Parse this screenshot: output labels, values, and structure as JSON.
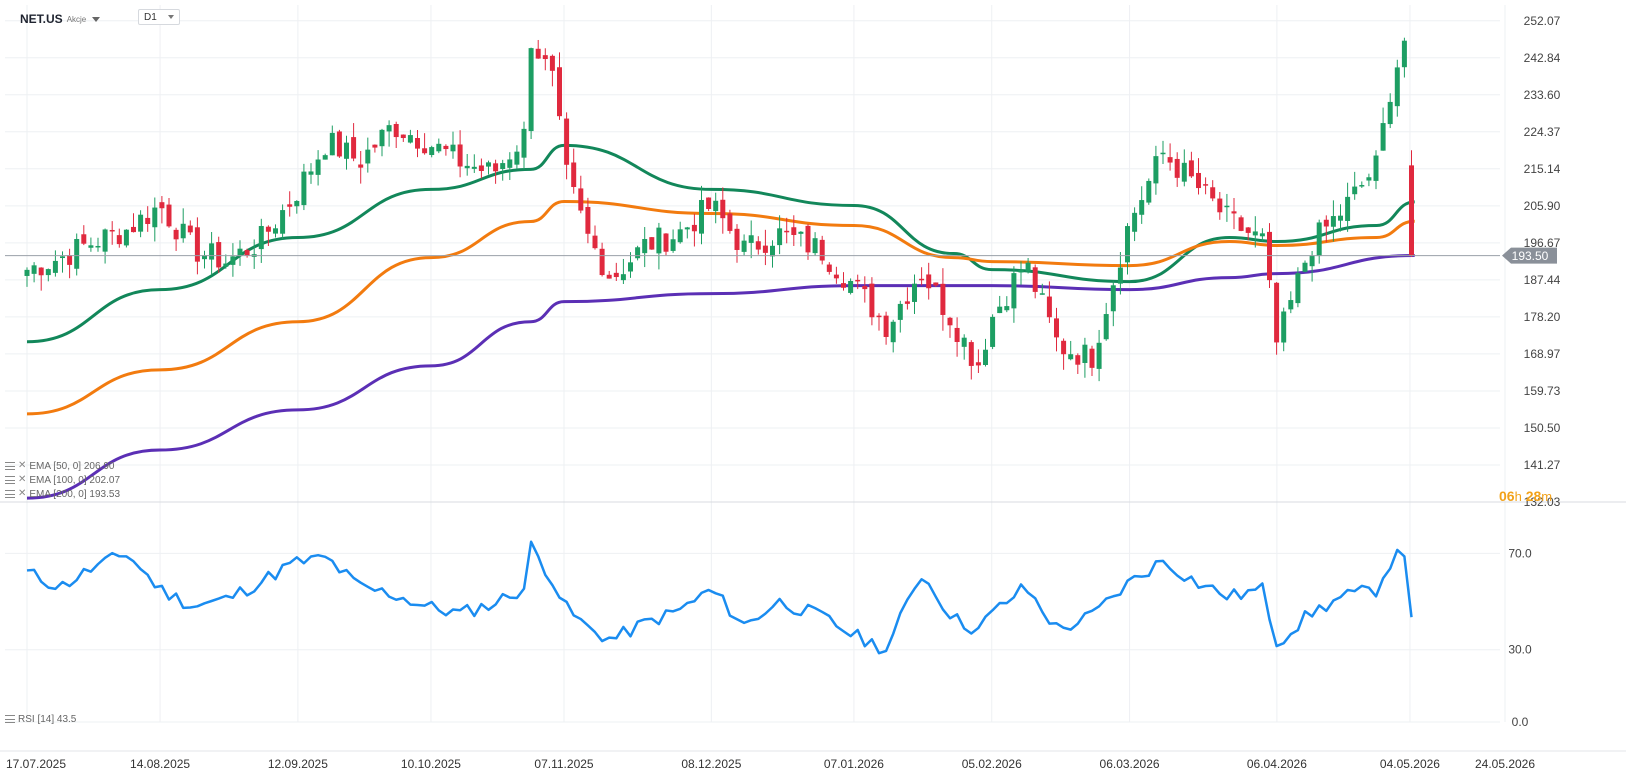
{
  "header": {
    "symbol": "NET.US",
    "symbol_type": "Akcje",
    "timeframe": "D1"
  },
  "indicators": {
    "ema50": "EMA [50, 0] 206.90",
    "ema100": "EMA [100, 0] 202.07",
    "ema200": "EMA [200, 0] 193.53",
    "rsi": "RSI [14] 43.5"
  },
  "timer": {
    "hours": "06",
    "h_unit": "h",
    "minutes": "28",
    "m_unit": "m"
  },
  "colors": {
    "up": "#1d9e63",
    "down": "#e0293e",
    "ema50": "#12875a",
    "ema100": "#f27b0f",
    "ema200": "#5b2fb5",
    "rsi": "#1a8cf0",
    "price_tag": "#8a9099",
    "grid": "#eef0f3"
  },
  "chart_data": [
    {
      "type": "candlestick",
      "title": "NET.US",
      "timeframe": "D1",
      "last_price": 193.5,
      "last_price_label": "193.50",
      "ylim": [
        132.03,
        256
      ],
      "y_ticks": [
        "252.07",
        "242.84",
        "233.60",
        "224.37",
        "215.14",
        "205.90",
        "196.67",
        "187.44",
        "178.20",
        "168.97",
        "159.73",
        "150.50",
        "141.27",
        "132.03"
      ],
      "x_ticks": [
        "17.07.2025",
        "14.08.2025",
        "12.09.2025",
        "10.10.2025",
        "07.11.2025",
        "08.12.2025",
        "07.01.2026",
        "05.02.2026",
        "06.03.2026",
        "06.04.2026",
        "04.05.2026",
        "24.05.2026"
      ],
      "close_series": [
        [
          "17.07.2025",
          190
        ],
        [
          "24.07.2025",
          193
        ],
        [
          "31.07.2025",
          197
        ],
        [
          "07.08.2025",
          200
        ],
        [
          "14.08.2025",
          206
        ],
        [
          "21.08.2025",
          195
        ],
        [
          "28.08.2025",
          192
        ],
        [
          "04.09.2025",
          197
        ],
        [
          "11.09.2025",
          208
        ],
        [
          "18.09.2025",
          222
        ],
        [
          "25.09.2025",
          217
        ],
        [
          "02.10.2025",
          226
        ],
        [
          "09.10.2025",
          222
        ],
        [
          "16.10.2025",
          217
        ],
        [
          "23.10.2025",
          214
        ],
        [
          "30.10.2025",
          224
        ],
        [
          "31.10.2025",
          248
        ],
        [
          "05.11.2025",
          236
        ],
        [
          "07.11.2025",
          215
        ],
        [
          "12.11.2025",
          198
        ],
        [
          "17.11.2025",
          188
        ],
        [
          "24.11.2025",
          196
        ],
        [
          "01.12.2025",
          199
        ],
        [
          "08.12.2025",
          206
        ],
        [
          "15.12.2025",
          195
        ],
        [
          "22.12.2025",
          199
        ],
        [
          "31.12.2025",
          195
        ],
        [
          "07.01.2026",
          186
        ],
        [
          "14.01.2026",
          176
        ],
        [
          "21.01.2026",
          190
        ],
        [
          "28.01.2026",
          177
        ],
        [
          "02.02.2026",
          166
        ],
        [
          "05.02.2026",
          178
        ],
        [
          "12.02.2026",
          192
        ],
        [
          "19.02.2026",
          171
        ],
        [
          "26.02.2026",
          168
        ],
        [
          "06.03.2026",
          202
        ],
        [
          "13.03.2026",
          219
        ],
        [
          "20.03.2026",
          211
        ],
        [
          "27.03.2026",
          202
        ],
        [
          "03.04.2026",
          197
        ],
        [
          "06.04.2026",
          171
        ],
        [
          "13.04.2026",
          196
        ],
        [
          "20.04.2026",
          205
        ],
        [
          "27.04.2026",
          216
        ],
        [
          "30.04.2026",
          236
        ],
        [
          "04.05.2026",
          252
        ],
        [
          "05.05.2026",
          193.5
        ]
      ],
      "overlays": [
        {
          "name": "EMA [50, 0]",
          "last": 206.9,
          "points": [
            [
              "17.07.2025",
              172
            ],
            [
              "14.08.2025",
              185
            ],
            [
              "12.09.2025",
              198
            ],
            [
              "10.10.2025",
              210
            ],
            [
              "31.10.2025",
              215
            ],
            [
              "07.11.2025",
              221
            ],
            [
              "08.12.2025",
              210
            ],
            [
              "07.01.2026",
              206
            ],
            [
              "28.01.2026",
              194
            ],
            [
              "05.02.2026",
              190
            ],
            [
              "06.03.2026",
              187
            ],
            [
              "27.03.2026",
              198
            ],
            [
              "06.04.2026",
              197
            ],
            [
              "27.04.2026",
              201
            ],
            [
              "05.05.2026",
              206.9
            ]
          ]
        },
        {
          "name": "EMA [100, 0]",
          "last": 202.07,
          "points": [
            [
              "17.07.2025",
              154
            ],
            [
              "14.08.2025",
              165
            ],
            [
              "12.09.2025",
              177
            ],
            [
              "10.10.2025",
              193
            ],
            [
              "31.10.2025",
              202
            ],
            [
              "07.11.2025",
              207
            ],
            [
              "08.12.2025",
              204
            ],
            [
              "07.01.2026",
              201
            ],
            [
              "28.01.2026",
              193
            ],
            [
              "05.02.2026",
              192
            ],
            [
              "06.03.2026",
              191
            ],
            [
              "27.03.2026",
              197
            ],
            [
              "06.04.2026",
              196
            ],
            [
              "27.04.2026",
              198
            ],
            [
              "05.05.2026",
              202.07
            ]
          ]
        },
        {
          "name": "EMA [200, 0]",
          "last": 193.53,
          "points": [
            [
              "17.07.2025",
              133
            ],
            [
              "14.08.2025",
              145
            ],
            [
              "12.09.2025",
              155
            ],
            [
              "10.10.2025",
              166
            ],
            [
              "31.10.2025",
              177
            ],
            [
              "07.11.2025",
              182
            ],
            [
              "08.12.2025",
              184
            ],
            [
              "07.01.2026",
              186
            ],
            [
              "05.02.2026",
              186
            ],
            [
              "06.03.2026",
              185
            ],
            [
              "27.03.2026",
              188
            ],
            [
              "06.04.2026",
              189
            ],
            [
              "05.05.2026",
              193.53
            ]
          ]
        }
      ],
      "grid": true
    },
    {
      "type": "line",
      "title": "RSI [14]",
      "ylim": [
        0,
        83
      ],
      "y_ticks": [
        "70.0",
        "30.0",
        "0.0"
      ],
      "last": 43.5,
      "points": [
        [
          "17.07.2025",
          62
        ],
        [
          "24.07.2025",
          56
        ],
        [
          "31.07.2025",
          64
        ],
        [
          "07.08.2025",
          70
        ],
        [
          "14.08.2025",
          55
        ],
        [
          "21.08.2025",
          48
        ],
        [
          "28.08.2025",
          51
        ],
        [
          "04.09.2025",
          58
        ],
        [
          "11.09.2025",
          66
        ],
        [
          "18.09.2025",
          68
        ],
        [
          "25.09.2025",
          56
        ],
        [
          "02.10.2025",
          53
        ],
        [
          "09.10.2025",
          48
        ],
        [
          "16.10.2025",
          45
        ],
        [
          "23.10.2025",
          49
        ],
        [
          "30.10.2025",
          56
        ],
        [
          "31.10.2025",
          73
        ],
        [
          "05.11.2025",
          58
        ],
        [
          "07.11.2025",
          48
        ],
        [
          "12.11.2025",
          39
        ],
        [
          "17.11.2025",
          34
        ],
        [
          "24.11.2025",
          41
        ],
        [
          "01.12.2025",
          46
        ],
        [
          "08.12.2025",
          55
        ],
        [
          "15.12.2025",
          40
        ],
        [
          "22.12.2025",
          50
        ],
        [
          "31.12.2025",
          44
        ],
        [
          "07.01.2026",
          36
        ],
        [
          "14.01.2026",
          30
        ],
        [
          "21.01.2026",
          62
        ],
        [
          "28.01.2026",
          43
        ],
        [
          "02.02.2026",
          38
        ],
        [
          "05.02.2026",
          45
        ],
        [
          "12.02.2026",
          56
        ],
        [
          "19.02.2026",
          38
        ],
        [
          "26.02.2026",
          44
        ],
        [
          "06.03.2026",
          58
        ],
        [
          "13.03.2026",
          67
        ],
        [
          "20.03.2026",
          58
        ],
        [
          "27.03.2026",
          52
        ],
        [
          "03.04.2026",
          55
        ],
        [
          "06.04.2026",
          33
        ],
        [
          "13.04.2026",
          45
        ],
        [
          "20.04.2026",
          52
        ],
        [
          "27.04.2026",
          55
        ],
        [
          "30.04.2026",
          67
        ],
        [
          "04.05.2026",
          72
        ],
        [
          "05.05.2026",
          43.5
        ]
      ],
      "grid": true
    }
  ]
}
